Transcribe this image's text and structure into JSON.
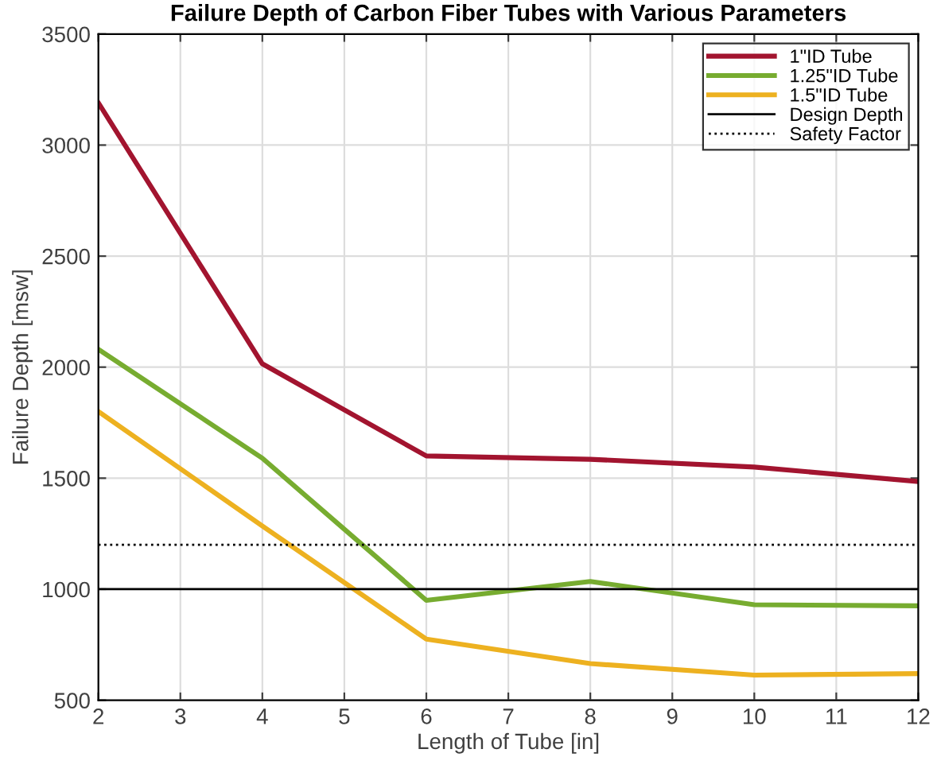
{
  "chart_data": {
    "type": "line",
    "title": "Failure Depth of Carbon Fiber Tubes with Various Parameters",
    "xlabel": "Length of Tube [in]",
    "ylabel": "Failure Depth [msw]",
    "x": [
      2,
      4,
      6,
      8,
      10,
      12
    ],
    "series": [
      {
        "name": "1\"ID Tube",
        "color": "#a2142f",
        "values": [
          3190,
          2015,
          1600,
          1585,
          1550,
          1485
        ]
      },
      {
        "name": "1.25\"ID Tube",
        "color": "#77ac30",
        "values": [
          2080,
          1590,
          950,
          1035,
          930,
          925
        ]
      },
      {
        "name": "1.5\"ID Tube",
        "color": "#edb120",
        "values": [
          1800,
          1285,
          775,
          665,
          613,
          620
        ]
      }
    ],
    "ref_lines": [
      {
        "axis": "y",
        "value": 1000,
        "label": "Design Depth",
        "color": "#000000",
        "line_style": "solid"
      },
      {
        "axis": "y",
        "value": 1200,
        "label": "Safety Factor",
        "color": "#000000",
        "line_style": "dotted"
      }
    ],
    "xlim": [
      2,
      12
    ],
    "xticks": [
      2,
      3,
      4,
      5,
      6,
      7,
      8,
      9,
      10,
      11,
      12
    ],
    "ylim": [
      500,
      3500
    ],
    "yticks": [
      500,
      1000,
      1500,
      2000,
      2500,
      3000,
      3500
    ],
    "grid": true,
    "legend": "top right",
    "line_style": "solid",
    "marker": "none"
  }
}
